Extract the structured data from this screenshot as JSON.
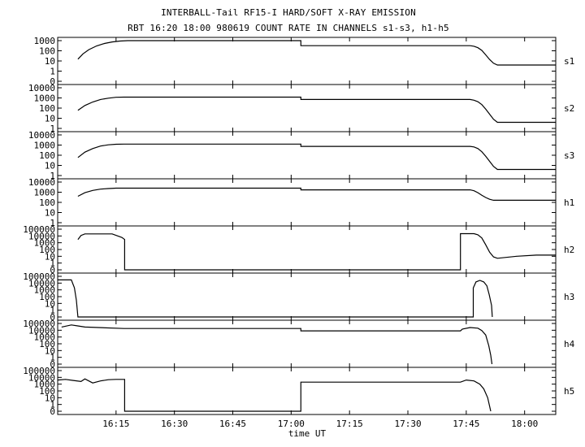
{
  "chart_data": {
    "type": "line",
    "title": "INTERBALL-Tail RF15-I HARD/SOFT X-RAY EMISSION",
    "subtitle": "RBT 16:20 18:00 980619  COUNT RATE IN CHANNELS s1-s3, h1-h5",
    "xlabel": "time UT",
    "x_ticks": [
      "16:15",
      "16:30",
      "16:45",
      "17:00",
      "17:15",
      "17:30",
      "17:45",
      "18:00"
    ],
    "x_range_min": [
      960,
      1088
    ],
    "y_scale": "log",
    "grid": false,
    "panels": [
      {
        "name": "s1",
        "y_ticks": [
          "1000",
          "100",
          "10",
          "1",
          "0"
        ],
        "series": [
          {
            "x": 965.2,
            "y": 15
          },
          {
            "x": 966.5,
            "y": 50
          },
          {
            "x": 968,
            "y": 130
          },
          {
            "x": 970,
            "y": 300
          },
          {
            "x": 972,
            "y": 520
          },
          {
            "x": 974,
            "y": 750
          },
          {
            "x": 976,
            "y": 920
          },
          {
            "x": 978,
            "y": 1000
          },
          {
            "x": 1022.5,
            "y": 1000
          },
          {
            "x": 1022.5,
            "y": 320
          },
          {
            "x": 1066,
            "y": 320
          },
          {
            "x": 1067,
            "y": 280
          },
          {
            "x": 1068,
            "y": 200
          },
          {
            "x": 1069,
            "y": 110
          },
          {
            "x": 1070,
            "y": 40
          },
          {
            "x": 1071,
            "y": 14
          },
          {
            "x": 1072,
            "y": 6
          },
          {
            "x": 1073,
            "y": 4
          },
          {
            "x": 1088,
            "y": 4
          }
        ]
      },
      {
        "name": "s2",
        "y_ticks": [
          "10000",
          "1000",
          "100",
          "10",
          "1"
        ],
        "series": [
          {
            "x": 965.2,
            "y": 60
          },
          {
            "x": 967,
            "y": 180
          },
          {
            "x": 969,
            "y": 400
          },
          {
            "x": 971,
            "y": 700
          },
          {
            "x": 973,
            "y": 950
          },
          {
            "x": 975,
            "y": 1150
          },
          {
            "x": 977,
            "y": 1200
          },
          {
            "x": 1022.5,
            "y": 1200
          },
          {
            "x": 1022.5,
            "y": 700
          },
          {
            "x": 1066,
            "y": 700
          },
          {
            "x": 1067,
            "y": 600
          },
          {
            "x": 1068,
            "y": 420
          },
          {
            "x": 1069,
            "y": 220
          },
          {
            "x": 1070,
            "y": 80
          },
          {
            "x": 1071,
            "y": 25
          },
          {
            "x": 1072,
            "y": 8
          },
          {
            "x": 1073,
            "y": 4
          },
          {
            "x": 1088,
            "y": 4
          }
        ]
      },
      {
        "name": "s3",
        "y_ticks": [
          "10000",
          "1000",
          "100",
          "10",
          "1"
        ],
        "series": [
          {
            "x": 965.2,
            "y": 60
          },
          {
            "x": 967,
            "y": 200
          },
          {
            "x": 969,
            "y": 450
          },
          {
            "x": 971,
            "y": 800
          },
          {
            "x": 973,
            "y": 1050
          },
          {
            "x": 975,
            "y": 1200
          },
          {
            "x": 977,
            "y": 1250
          },
          {
            "x": 1022.5,
            "y": 1250
          },
          {
            "x": 1022.5,
            "y": 750
          },
          {
            "x": 1066,
            "y": 750
          },
          {
            "x": 1067,
            "y": 650
          },
          {
            "x": 1068,
            "y": 450
          },
          {
            "x": 1069,
            "y": 220
          },
          {
            "x": 1070,
            "y": 80
          },
          {
            "x": 1071,
            "y": 25
          },
          {
            "x": 1072,
            "y": 8
          },
          {
            "x": 1073,
            "y": 4
          },
          {
            "x": 1088,
            "y": 4
          }
        ]
      },
      {
        "name": "h1",
        "y_ticks": [
          "10000",
          "1000",
          "100",
          "10",
          "1"
        ],
        "series": [
          {
            "x": 965.2,
            "y": 400
          },
          {
            "x": 967,
            "y": 900
          },
          {
            "x": 969,
            "y": 1500
          },
          {
            "x": 971,
            "y": 2000
          },
          {
            "x": 973,
            "y": 2300
          },
          {
            "x": 975,
            "y": 2500
          },
          {
            "x": 1022.5,
            "y": 2500
          },
          {
            "x": 1022.5,
            "y": 1700
          },
          {
            "x": 1066,
            "y": 1700
          },
          {
            "x": 1067,
            "y": 1400
          },
          {
            "x": 1068,
            "y": 900
          },
          {
            "x": 1069,
            "y": 500
          },
          {
            "x": 1070,
            "y": 300
          },
          {
            "x": 1071,
            "y": 200
          },
          {
            "x": 1072,
            "y": 160
          },
          {
            "x": 1088,
            "y": 160
          }
        ]
      },
      {
        "name": "h2",
        "y_ticks": [
          "100000",
          "10000",
          "1000",
          "100",
          "10",
          "1",
          "0"
        ],
        "series": [
          {
            "x": 965.2,
            "y": 3000
          },
          {
            "x": 966,
            "y": 12000
          },
          {
            "x": 967,
            "y": 20000
          },
          {
            "x": 974,
            "y": 20000
          },
          {
            "x": 976.5,
            "y": 6000
          },
          {
            "x": 977.2,
            "y": 3000
          },
          {
            "x": 977.2,
            "y": 0
          },
          {
            "x": 1063.5,
            "y": 0
          },
          {
            "x": 1063.5,
            "y": 22000
          },
          {
            "x": 1067,
            "y": 22000
          },
          {
            "x": 1068,
            "y": 15000
          },
          {
            "x": 1069,
            "y": 5000
          },
          {
            "x": 1070,
            "y": 500
          },
          {
            "x": 1071,
            "y": 40
          },
          {
            "x": 1072,
            "y": 8
          },
          {
            "x": 1073,
            "y": 5
          },
          {
            "x": 1078,
            "y": 10
          },
          {
            "x": 1083,
            "y": 15
          },
          {
            "x": 1088,
            "y": 15
          }
        ]
      },
      {
        "name": "h3",
        "y_ticks": [
          "100000",
          "10000",
          "1000",
          "100",
          "10",
          "1",
          "0"
        ],
        "series": [
          {
            "x": 960,
            "y": 30000
          },
          {
            "x": 963.5,
            "y": 30000
          },
          {
            "x": 964.3,
            "y": 2000
          },
          {
            "x": 964.8,
            "y": 30
          },
          {
            "x": 965.2,
            "y": 0
          },
          {
            "x": 1066.8,
            "y": 0
          },
          {
            "x": 1066.8,
            "y": 2000
          },
          {
            "x": 1067.5,
            "y": 15000
          },
          {
            "x": 1068.5,
            "y": 25000
          },
          {
            "x": 1069.5,
            "y": 15000
          },
          {
            "x": 1070.3,
            "y": 4000
          },
          {
            "x": 1070.9,
            "y": 200
          },
          {
            "x": 1071.5,
            "y": 5
          },
          {
            "x": 1071.7,
            "y": 0
          }
        ]
      },
      {
        "name": "h4",
        "y_ticks": [
          "100000",
          "10000",
          "1000",
          "100",
          "10",
          "1",
          "0"
        ],
        "series": [
          {
            "x": 961,
            "y": 30000
          },
          {
            "x": 963.5,
            "y": 60000
          },
          {
            "x": 965,
            "y": 45000
          },
          {
            "x": 967,
            "y": 30000
          },
          {
            "x": 977,
            "y": 18000
          },
          {
            "x": 1022.5,
            "y": 18000
          },
          {
            "x": 1022.5,
            "y": 8000
          },
          {
            "x": 1063.5,
            "y": 8000
          },
          {
            "x": 1064,
            "y": 15000
          },
          {
            "x": 1066,
            "y": 25000
          },
          {
            "x": 1068,
            "y": 20000
          },
          {
            "x": 1069,
            "y": 9000
          },
          {
            "x": 1070,
            "y": 2000
          },
          {
            "x": 1070.8,
            "y": 50
          },
          {
            "x": 1071.3,
            "y": 2
          },
          {
            "x": 1071.6,
            "y": 0
          }
        ]
      },
      {
        "name": "h5",
        "y_ticks": [
          "100000",
          "10000",
          "1000",
          "100",
          "10",
          "1",
          "0"
        ],
        "series": [
          {
            "x": 960,
            "y": 4000
          },
          {
            "x": 962,
            "y": 5000
          },
          {
            "x": 964,
            "y": 3500
          },
          {
            "x": 966,
            "y": 2500
          },
          {
            "x": 967,
            "y": 6000
          },
          {
            "x": 969,
            "y": 1500
          },
          {
            "x": 971,
            "y": 3000
          },
          {
            "x": 973,
            "y": 4500
          },
          {
            "x": 975,
            "y": 5000
          },
          {
            "x": 977.2,
            "y": 5000
          },
          {
            "x": 977.2,
            "y": 0
          },
          {
            "x": 1022.5,
            "y": 0
          },
          {
            "x": 1022.5,
            "y": 2000
          },
          {
            "x": 1063.5,
            "y": 2000
          },
          {
            "x": 1065,
            "y": 4000
          },
          {
            "x": 1067,
            "y": 3000
          },
          {
            "x": 1068.5,
            "y": 1000
          },
          {
            "x": 1069.5,
            "y": 200
          },
          {
            "x": 1070.5,
            "y": 10
          },
          {
            "x": 1071.3,
            "y": 0
          }
        ]
      }
    ]
  }
}
